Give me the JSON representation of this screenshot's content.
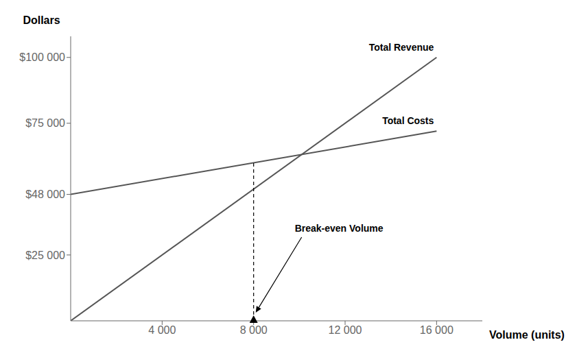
{
  "chart_data": {
    "type": "line",
    "color": "#555555",
    "x": [
      0,
      16000
    ],
    "series": [
      {
        "name": "Total Revenue",
        "values": [
          0,
          100000
        ]
      },
      {
        "name": "Total Costs",
        "values": [
          48000,
          72000
        ]
      }
    ],
    "xlabel": "Volume (units)",
    "ylabel": "Dollars",
    "xlim": [
      0,
      18000
    ],
    "ylim": [
      0,
      108000
    ],
    "xticks": [
      {
        "value": 4000,
        "label": "4 000"
      },
      {
        "value": 8000,
        "label": "8 000"
      },
      {
        "value": 12000,
        "label": "12 000"
      },
      {
        "value": 16000,
        "label": "16 000"
      }
    ],
    "yticks": [
      {
        "value": 25000,
        "label": "$25 000"
      },
      {
        "value": 48000,
        "label": "$48 000"
      },
      {
        "value": 75000,
        "label": "$75 000"
      },
      {
        "value": 100000,
        "label": "$100 000"
      }
    ],
    "grid": false,
    "annotations": [
      {
        "text": "Break-even Volume",
        "x": 8000,
        "y": 60000
      }
    ]
  }
}
